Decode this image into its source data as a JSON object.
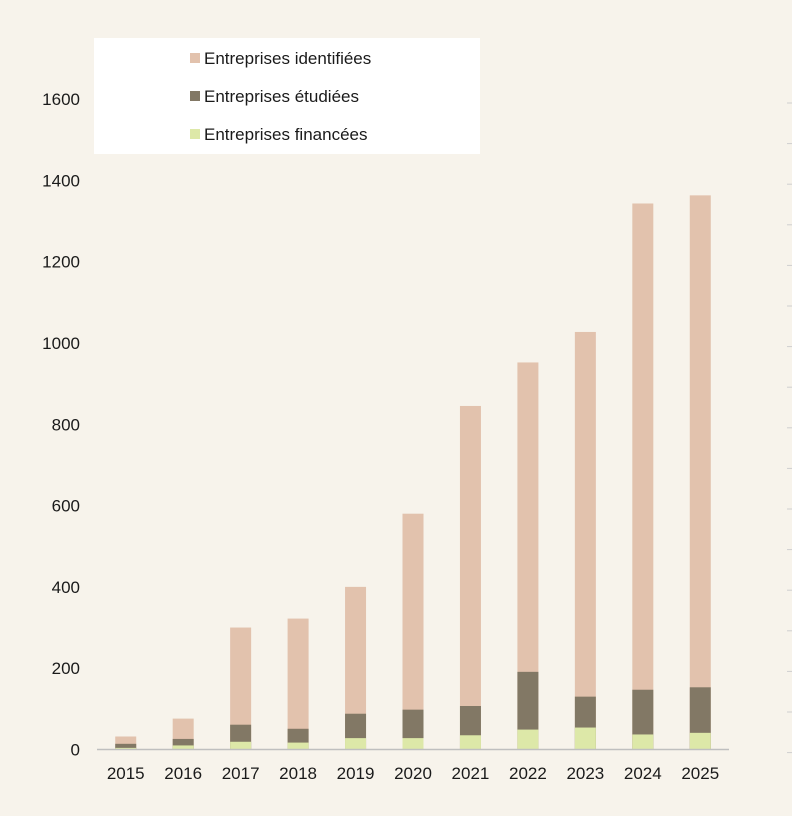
{
  "chart_data": {
    "type": "bar",
    "stacked": true,
    "categories": [
      "2015",
      "2016",
      "2017",
      "2018",
      "2019",
      "2020",
      "2021",
      "2022",
      "2023",
      "2024",
      "2025"
    ],
    "series": [
      {
        "name": "Entreprises identifiées",
        "color": "#e2c2ad",
        "values": [
          32,
          76,
          300,
          322,
          400,
          580,
          845,
          952,
          1027,
          1343,
          1363
        ]
      },
      {
        "name": "Entreprises étudiées",
        "color": "#827865",
        "values": [
          14,
          26,
          61,
          51,
          88,
          98,
          107,
          191,
          130,
          147,
          153
        ]
      },
      {
        "name": "Entreprises financées",
        "color": "#dde8a8",
        "values": [
          4,
          10,
          19,
          17,
          28,
          28,
          35,
          49,
          54,
          37,
          41
        ]
      }
    ],
    "note": "overlapping bars drawn from baseline: identifiées behind, étudiées middle, financées front",
    "yticks": [
      0,
      200,
      400,
      600,
      800,
      1000,
      1200,
      1400,
      1600
    ],
    "ylim": [
      0,
      1700
    ],
    "grid": false,
    "legend_position": "top-left",
    "colors": {
      "background": "#f7f3eb",
      "legend_background": "#ffffff",
      "axis": "#bfbfbf",
      "text": "#1a1a1a"
    }
  }
}
